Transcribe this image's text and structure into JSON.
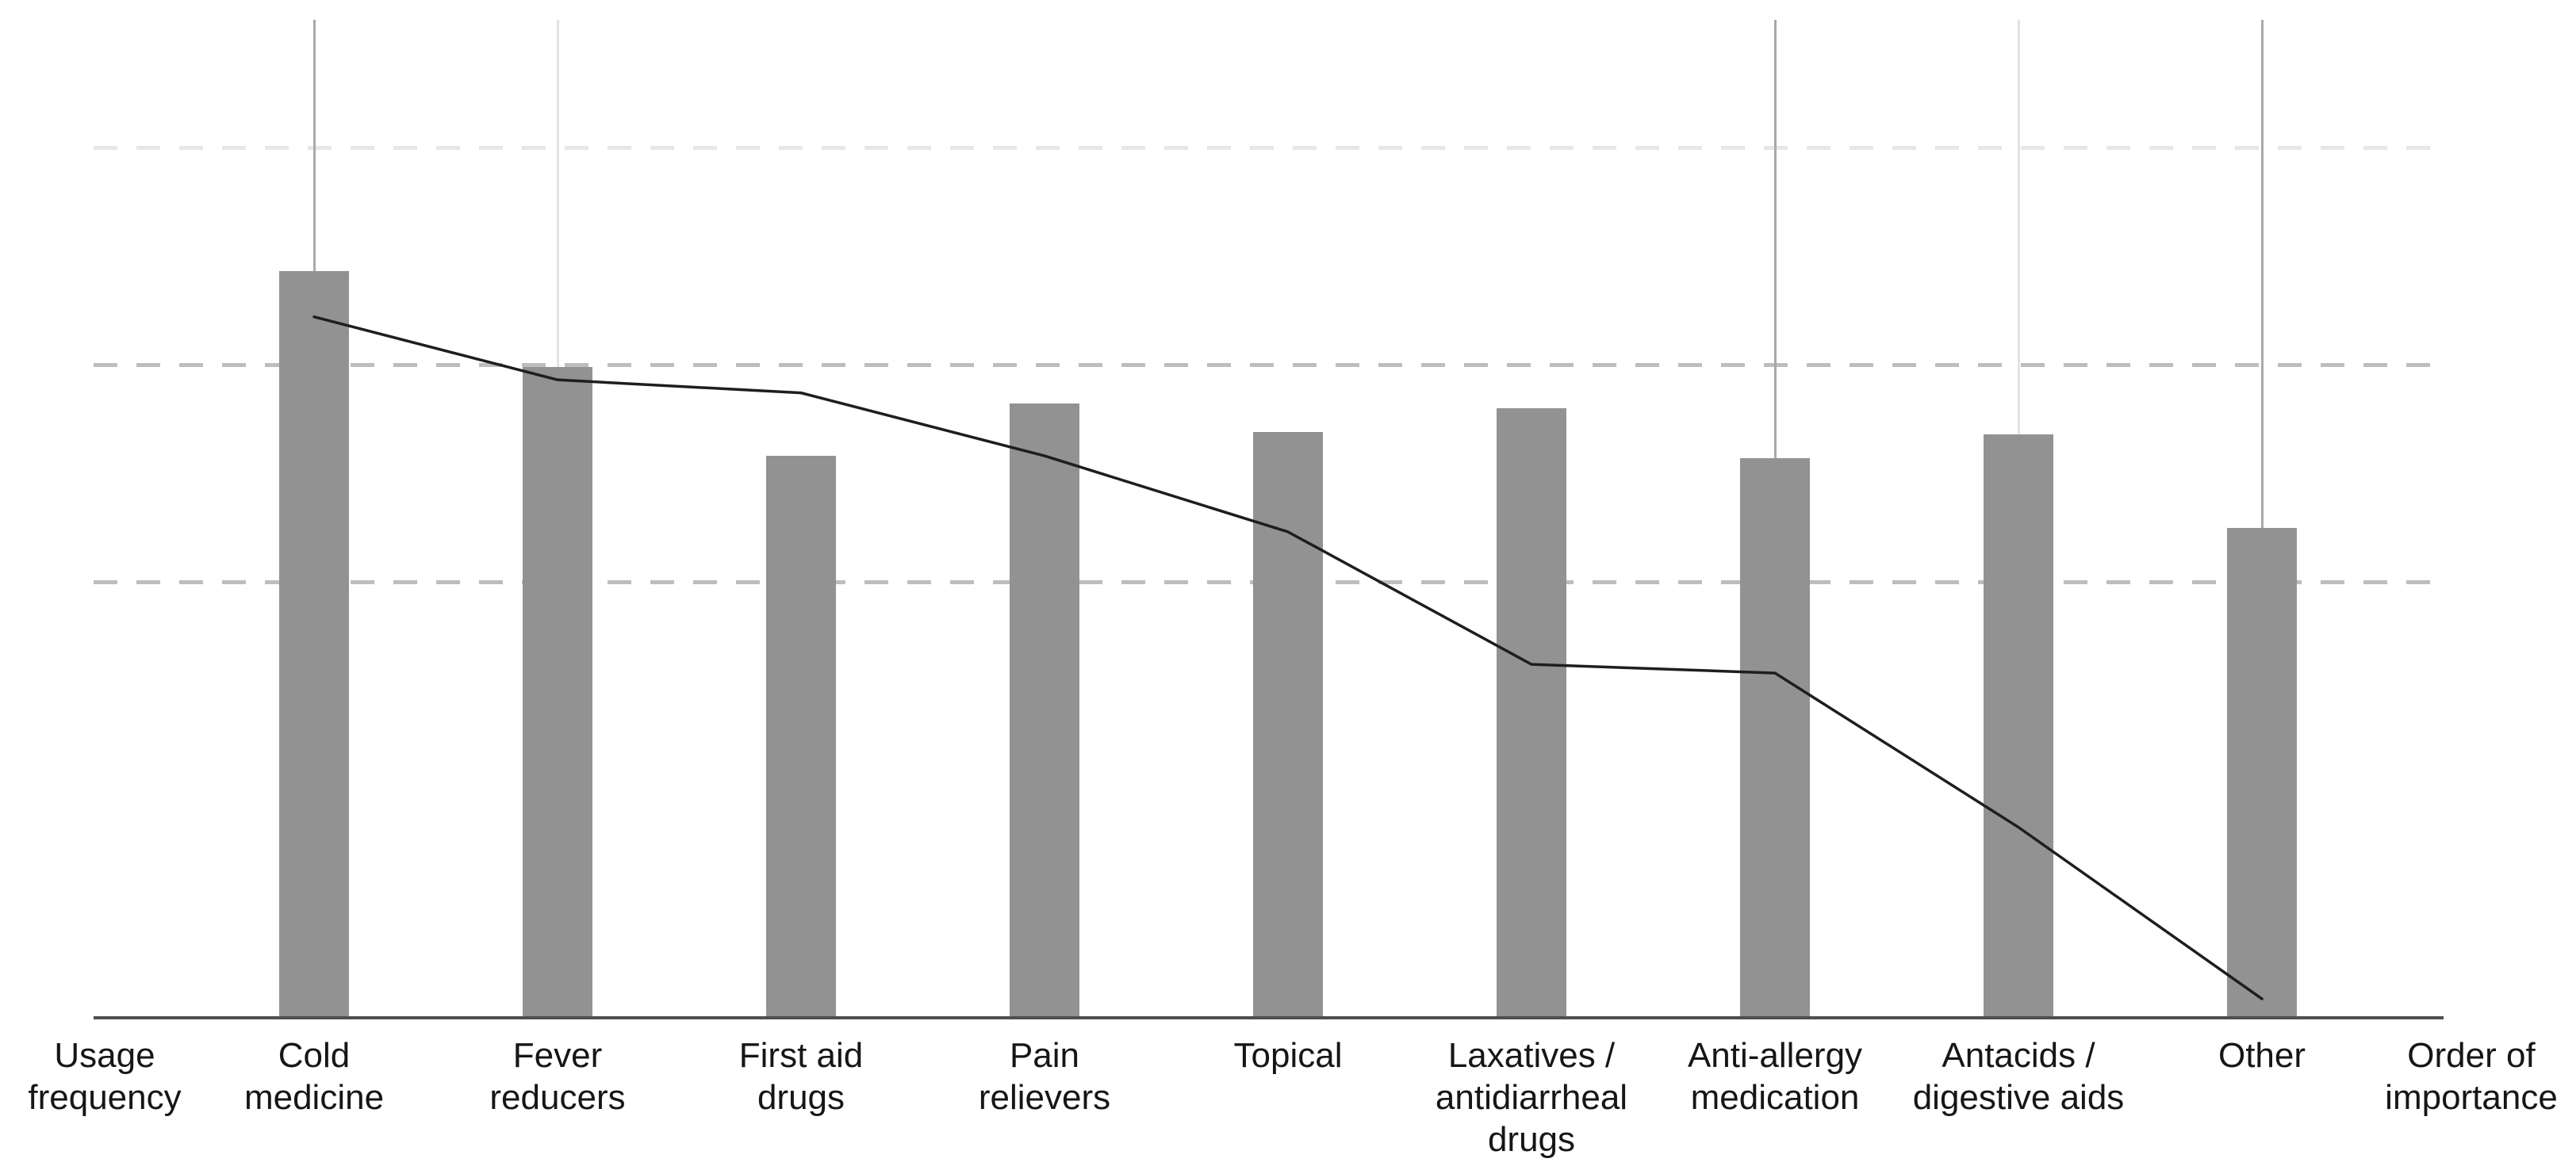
{
  "chart_data": {
    "type": "bar+line",
    "title": "",
    "categories": [
      "Cold medicine",
      "Fever reducers",
      "First aid drugs",
      "Pain relievers",
      "Topical",
      "Laxatives / antidiarrheal drugs",
      "Anti-allergy medication",
      "Antacids / digestive aids",
      "Other"
    ],
    "category_label_lines": [
      "Cold\nmedicine",
      "Fever\nreducers",
      "First aid\ndrugs",
      "Pain\nrelievers",
      "Topical",
      "Laxatives /\nantidiarrheal\ndrugs",
      "Anti-allergy\nmedication",
      "Antacids /\ndigestive aids",
      "Other"
    ],
    "axis_end_labels": {
      "left": "Usage\nfrequency",
      "right": "Order of\nimportance"
    },
    "series": [
      {
        "name": "Usage frequency",
        "type": "bar",
        "values": [
          3.43,
          2.99,
          2.58,
          2.82,
          2.69,
          2.8,
          2.57,
          2.68,
          2.25
        ]
      },
      {
        "name": "Order of importance",
        "type": "line",
        "values": [
          3.22,
          2.93,
          2.87,
          2.58,
          2.23,
          1.62,
          1.58,
          0.87,
          0.08
        ]
      }
    ],
    "value_axis": {
      "tick_labels": "none (unlabeled axis)",
      "gridline_values": [
        4,
        3,
        2
      ],
      "units": "gridline units, baseline = 0",
      "ylim": [
        0,
        4.6
      ],
      "grid": "dashed horizontal, top gridline lighter"
    },
    "legend": "none",
    "reference_lines": [
      {
        "category_index": 0,
        "style": "dark"
      },
      {
        "category_index": 1,
        "style": "faint"
      },
      {
        "category_index": 6,
        "style": "dark"
      },
      {
        "category_index": 7,
        "style": "faint"
      },
      {
        "category_index": 8,
        "style": "dark"
      }
    ]
  },
  "colors": {
    "bar": "#929292",
    "line": "#1e1e1e",
    "axis": "#4f4f4f",
    "gridline_mid": "#bdbdbd",
    "gridline_light": "#e7e7e7",
    "refline_dark": "#a9a9a9",
    "refline_faint": "#e2e2e2",
    "label_text": "#161616",
    "background": "#ffffff"
  }
}
